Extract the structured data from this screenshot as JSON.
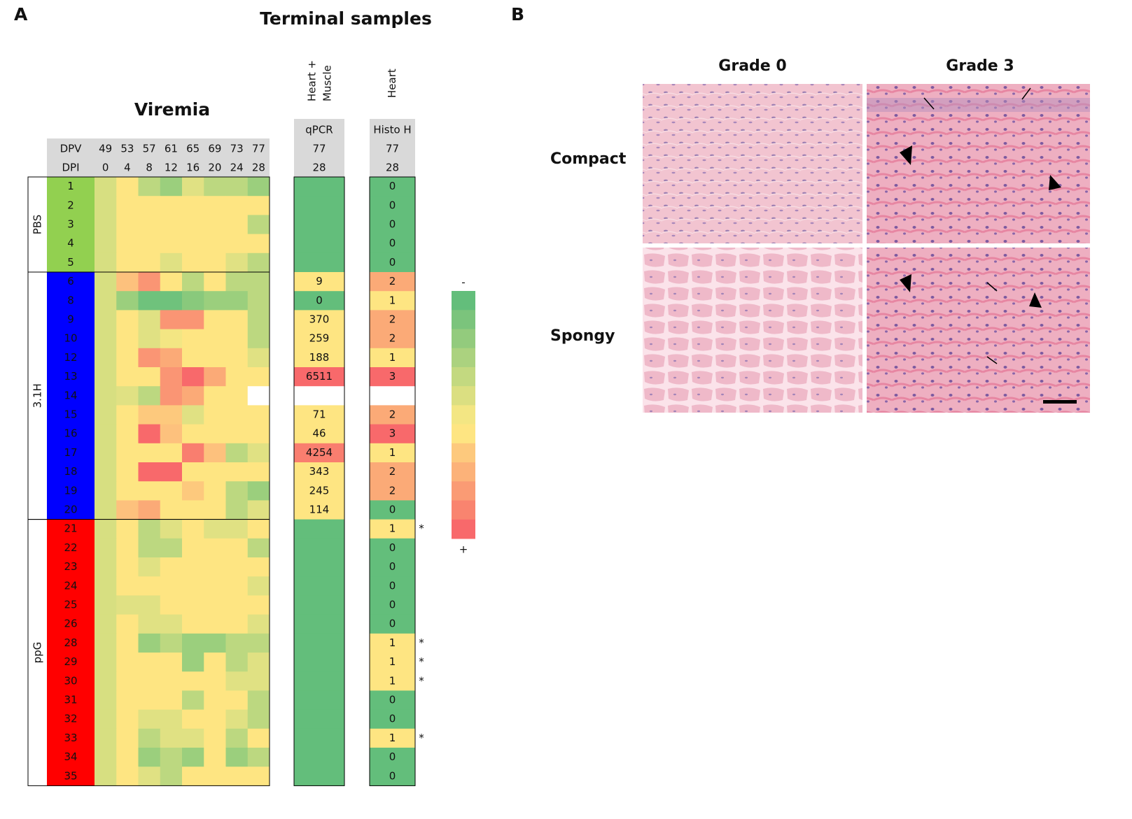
{
  "panel_labels": [
    "A",
    "B"
  ],
  "heatmap": {
    "title": "Terminal samples",
    "viremia_label": "Viremia",
    "header": {
      "dpv_label": "DPV",
      "dpi_label": "DPI",
      "dpv": [
        "49",
        "53",
        "57",
        "61",
        "65",
        "69",
        "73",
        "77"
      ],
      "dpi": [
        "0",
        "4",
        "8",
        "12",
        "16",
        "20",
        "24",
        "28"
      ]
    },
    "qpcr_header": {
      "tissue_lines": [
        "Heart +",
        "Muscle"
      ],
      "label": "qPCR",
      "dpv": "77",
      "dpi": "28"
    },
    "histo_header": {
      "tissue": "Heart",
      "label": "Histo H",
      "dpv": "77",
      "dpi": "28"
    },
    "legend": {
      "minus": "-",
      "plus": "+",
      "colors": [
        "#63be7b",
        "#7bc47c",
        "#93cb7d",
        "#abd27f",
        "#c3d980",
        "#dbdf81",
        "#f3e683",
        "#fee582",
        "#fdc97d",
        "#fcb279",
        "#fa9b74",
        "#f9846f",
        "#f8696b"
      ]
    },
    "groups": [
      {
        "name": "PBS",
        "color": "#92d050",
        "rows": [
          {
            "id": "1",
            "cells": [
              "#d7df81",
              "#fee582",
              "#bcd880",
              "#9bcf7d",
              "#e0e183",
              "#bcd880",
              "#bcd880",
              "#9bcf7d"
            ],
            "qpcr": {
              "text": null,
              "color": "#63be7b"
            },
            "histo": {
              "text": "0",
              "color": "#63be7b"
            }
          },
          {
            "id": "2",
            "cells": [
              "#d7df81",
              "#fee582",
              "#fee582",
              "#fee582",
              "#fee582",
              "#fee582",
              "#fee582",
              "#fee582"
            ],
            "qpcr": {
              "text": null,
              "color": "#63be7b"
            },
            "histo": {
              "text": "0",
              "color": "#63be7b"
            }
          },
          {
            "id": "3",
            "cells": [
              "#d7df81",
              "#fee582",
              "#fee582",
              "#fee582",
              "#fee582",
              "#fee582",
              "#fee582",
              "#bcd880"
            ],
            "qpcr": {
              "text": null,
              "color": "#63be7b"
            },
            "histo": {
              "text": "0",
              "color": "#63be7b"
            }
          },
          {
            "id": "4",
            "cells": [
              "#d7df81",
              "#fee582",
              "#fee582",
              "#fee582",
              "#fee582",
              "#fee582",
              "#fee582",
              "#fee582"
            ],
            "qpcr": {
              "text": null,
              "color": "#63be7b"
            },
            "histo": {
              "text": "0",
              "color": "#63be7b"
            }
          },
          {
            "id": "5",
            "cells": [
              "#d7df81",
              "#fee582",
              "#fee582",
              "#e0e183",
              "#fee582",
              "#fee582",
              "#e0e183",
              "#bcd880"
            ],
            "qpcr": {
              "text": null,
              "color": "#63be7b"
            },
            "histo": {
              "text": "0",
              "color": "#63be7b"
            }
          }
        ]
      },
      {
        "name": "3.1H",
        "color": "#0000ff",
        "rows": [
          {
            "id": "6",
            "cells": [
              "#d7df81",
              "#fdc17d",
              "#fa9574",
              "#fee582",
              "#bcd880",
              "#fee582",
              "#bcd880",
              "#bcd880"
            ],
            "qpcr": {
              "text": "9",
              "color": "#fee582"
            },
            "histo": {
              "text": "2",
              "color": "#fbaa77"
            }
          },
          {
            "id": "8",
            "cells": [
              "#d7df81",
              "#9bcf7d",
              "#6fc27c",
              "#6fc27c",
              "#89c97c",
              "#9bcf7d",
              "#9bcf7d",
              "#bcd880"
            ],
            "qpcr": {
              "text": "0",
              "color": "#63be7b"
            },
            "histo": {
              "text": "1",
              "color": "#fee582"
            }
          },
          {
            "id": "9",
            "cells": [
              "#d7df81",
              "#fee582",
              "#e0e183",
              "#fa9574",
              "#fa9574",
              "#fee582",
              "#fee582",
              "#bcd880"
            ],
            "qpcr": {
              "text": "370",
              "color": "#fee582"
            },
            "histo": {
              "text": "2",
              "color": "#fbaa77"
            }
          },
          {
            "id": "10",
            "cells": [
              "#d7df81",
              "#fee582",
              "#e0e183",
              "#f3e683",
              "#fee582",
              "#fee582",
              "#fee582",
              "#bcd880"
            ],
            "qpcr": {
              "text": "259",
              "color": "#fee582"
            },
            "histo": {
              "text": "2",
              "color": "#fbaa77"
            }
          },
          {
            "id": "12",
            "cells": [
              "#d7df81",
              "#fee582",
              "#fa9574",
              "#fbaa77",
              "#fee582",
              "#fee582",
              "#fee582",
              "#e0e183"
            ],
            "qpcr": {
              "text": "188",
              "color": "#fee582"
            },
            "histo": {
              "text": "1",
              "color": "#fee582"
            }
          },
          {
            "id": "13",
            "cells": [
              "#d7df81",
              "#fee582",
              "#fee582",
              "#fa9574",
              "#f8696b",
              "#fbaa77",
              "#fee582",
              "#fee582"
            ],
            "qpcr": {
              "text": "6511",
              "color": "#f8696b"
            },
            "histo": {
              "text": "3",
              "color": "#f8696b"
            }
          },
          {
            "id": "14",
            "cells": [
              "#d7df81",
              "#e0e183",
              "#bcd880",
              "#fa9574",
              "#fbaa77",
              "#fee582",
              "#fee582",
              "#ffffff"
            ],
            "qpcr": {
              "text": null,
              "color": "#ffffff"
            },
            "histo": {
              "text": null,
              "color": "#ffffff"
            }
          },
          {
            "id": "15",
            "cells": [
              "#d7df81",
              "#fee582",
              "#fdc97d",
              "#fdc97d",
              "#e0e183",
              "#fee582",
              "#fee582",
              "#fee582"
            ],
            "qpcr": {
              "text": "71",
              "color": "#fee582"
            },
            "histo": {
              "text": "2",
              "color": "#fbaa77"
            }
          },
          {
            "id": "16",
            "cells": [
              "#d7df81",
              "#fee582",
              "#f8696b",
              "#fdc17d",
              "#fee582",
              "#fee582",
              "#fee582",
              "#fee582"
            ],
            "qpcr": {
              "text": "46",
              "color": "#fee582"
            },
            "histo": {
              "text": "3",
              "color": "#f8696b"
            }
          },
          {
            "id": "17",
            "cells": [
              "#d7df81",
              "#fee582",
              "#fee582",
              "#fee582",
              "#f97e6f",
              "#fdc17d",
              "#bcd880",
              "#e0e183"
            ],
            "qpcr": {
              "text": "4254",
              "color": "#f97e6f"
            },
            "histo": {
              "text": "1",
              "color": "#fee582"
            }
          },
          {
            "id": "18",
            "cells": [
              "#d7df81",
              "#fee582",
              "#f8696b",
              "#f8696b",
              "#fee582",
              "#fee582",
              "#fee582",
              "#fee582"
            ],
            "qpcr": {
              "text": "343",
              "color": "#fee582"
            },
            "histo": {
              "text": "2",
              "color": "#fbaa77"
            }
          },
          {
            "id": "19",
            "cells": [
              "#d7df81",
              "#fee582",
              "#fee582",
              "#fee582",
              "#fdc97d",
              "#fee582",
              "#bcd880",
              "#9bcf7d"
            ],
            "qpcr": {
              "text": "245",
              "color": "#fee582"
            },
            "histo": {
              "text": "2",
              "color": "#fbaa77"
            }
          },
          {
            "id": "20",
            "cells": [
              "#d7df81",
              "#fdc17d",
              "#fbaa77",
              "#fee582",
              "#fee582",
              "#fee582",
              "#bcd880",
              "#e0e183"
            ],
            "qpcr": {
              "text": "114",
              "color": "#fee582"
            },
            "histo": {
              "text": "0",
              "color": "#63be7b"
            }
          }
        ]
      },
      {
        "name": "ppG",
        "color": "#ff0000",
        "rows": [
          {
            "id": "21",
            "cells": [
              "#d7df81",
              "#fee582",
              "#bcd880",
              "#e0e183",
              "#fee582",
              "#e0e183",
              "#e0e183",
              "#fee582"
            ],
            "qpcr": {
              "text": null,
              "color": "#63be7b"
            },
            "histo": {
              "text": "1",
              "color": "#fee582"
            },
            "mark": "*"
          },
          {
            "id": "22",
            "cells": [
              "#d7df81",
              "#fee582",
              "#bcd880",
              "#bcd880",
              "#fee582",
              "#fee582",
              "#fee582",
              "#bcd880"
            ],
            "qpcr": {
              "text": null,
              "color": "#63be7b"
            },
            "histo": {
              "text": "0",
              "color": "#63be7b"
            }
          },
          {
            "id": "23",
            "cells": [
              "#d7df81",
              "#fee582",
              "#e0e183",
              "#fee582",
              "#fee582",
              "#fee582",
              "#fee582",
              "#fee582"
            ],
            "qpcr": {
              "text": null,
              "color": "#63be7b"
            },
            "histo": {
              "text": "0",
              "color": "#63be7b"
            }
          },
          {
            "id": "24",
            "cells": [
              "#d7df81",
              "#fee582",
              "#fee582",
              "#fee582",
              "#fee582",
              "#fee582",
              "#fee582",
              "#e0e183"
            ],
            "qpcr": {
              "text": null,
              "color": "#63be7b"
            },
            "histo": {
              "text": "0",
              "color": "#63be7b"
            }
          },
          {
            "id": "25",
            "cells": [
              "#d7df81",
              "#e0e183",
              "#e0e183",
              "#fee582",
              "#fee582",
              "#fee582",
              "#fee582",
              "#fee582"
            ],
            "qpcr": {
              "text": null,
              "color": "#63be7b"
            },
            "histo": {
              "text": "0",
              "color": "#63be7b"
            }
          },
          {
            "id": "26",
            "cells": [
              "#d7df81",
              "#fee582",
              "#e0e183",
              "#e0e183",
              "#fee582",
              "#fee582",
              "#fee582",
              "#e0e183"
            ],
            "qpcr": {
              "text": null,
              "color": "#63be7b"
            },
            "histo": {
              "text": "0",
              "color": "#63be7b"
            }
          },
          {
            "id": "28",
            "cells": [
              "#d7df81",
              "#fee582",
              "#9bcf7d",
              "#bcd880",
              "#9bcf7d",
              "#9bcf7d",
              "#bcd880",
              "#bcd880"
            ],
            "qpcr": {
              "text": null,
              "color": "#63be7b"
            },
            "histo": {
              "text": "1",
              "color": "#fee582"
            },
            "mark": "*"
          },
          {
            "id": "29",
            "cells": [
              "#d7df81",
              "#fee582",
              "#fee582",
              "#fee582",
              "#9bcf7d",
              "#fee582",
              "#bcd880",
              "#e0e183"
            ],
            "qpcr": {
              "text": null,
              "color": "#63be7b"
            },
            "histo": {
              "text": "1",
              "color": "#fee582"
            },
            "mark": "*"
          },
          {
            "id": "30",
            "cells": [
              "#d7df81",
              "#fee582",
              "#fee582",
              "#fee582",
              "#fee582",
              "#fee582",
              "#e0e183",
              "#e0e183"
            ],
            "qpcr": {
              "text": null,
              "color": "#63be7b"
            },
            "histo": {
              "text": "1",
              "color": "#fee582"
            },
            "mark": "*"
          },
          {
            "id": "31",
            "cells": [
              "#d7df81",
              "#fee582",
              "#fee582",
              "#fee582",
              "#bcd880",
              "#fee582",
              "#fee582",
              "#bcd880"
            ],
            "qpcr": {
              "text": null,
              "color": "#63be7b"
            },
            "histo": {
              "text": "0",
              "color": "#63be7b"
            }
          },
          {
            "id": "32",
            "cells": [
              "#d7df81",
              "#fee582",
              "#e0e183",
              "#e0e183",
              "#fee582",
              "#fee582",
              "#e0e183",
              "#bcd880"
            ],
            "qpcr": {
              "text": null,
              "color": "#63be7b"
            },
            "histo": {
              "text": "0",
              "color": "#63be7b"
            }
          },
          {
            "id": "33",
            "cells": [
              "#d7df81",
              "#fee582",
              "#bcd880",
              "#e0e183",
              "#e0e183",
              "#fee582",
              "#bcd880",
              "#fee582"
            ],
            "qpcr": {
              "text": null,
              "color": "#63be7b"
            },
            "histo": {
              "text": "1",
              "color": "#fee582"
            },
            "mark": "*"
          },
          {
            "id": "34",
            "cells": [
              "#d7df81",
              "#fee582",
              "#9bcf7d",
              "#bcd880",
              "#9bcf7d",
              "#fee582",
              "#9bcf7d",
              "#bcd880"
            ],
            "qpcr": {
              "text": null,
              "color": "#63be7b"
            },
            "histo": {
              "text": "0",
              "color": "#63be7b"
            }
          },
          {
            "id": "35",
            "cells": [
              "#d7df81",
              "#fee582",
              "#e0e183",
              "#bcd880",
              "#fee582",
              "#fee582",
              "#fee582",
              "#fee582"
            ],
            "qpcr": {
              "text": null,
              "color": "#63be7b"
            },
            "histo": {
              "text": "0",
              "color": "#63be7b"
            }
          }
        ]
      }
    ]
  },
  "histology": {
    "columns": [
      "Grade 0",
      "Grade 3"
    ],
    "rows": [
      "Compact",
      "Spongy"
    ]
  }
}
